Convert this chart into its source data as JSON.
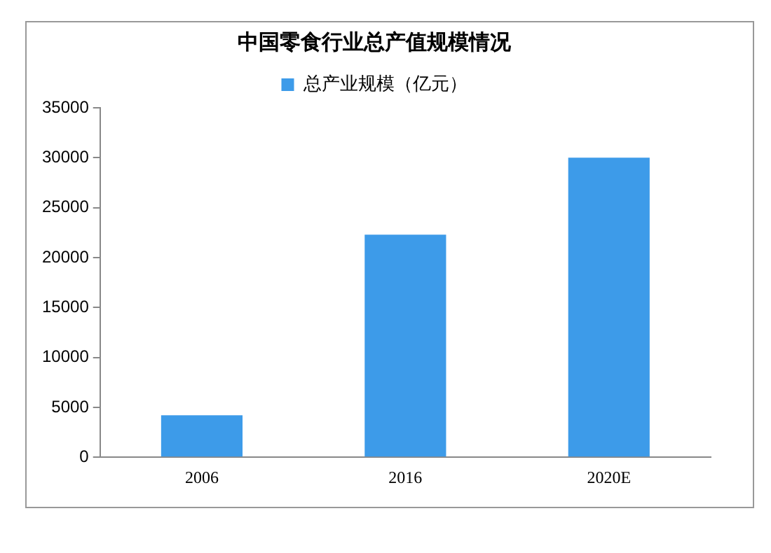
{
  "chart_data": {
    "type": "bar",
    "title": "中国零食行业总产值规模情况",
    "categories": [
      "2006",
      "2016",
      "2020E"
    ],
    "series": [
      {
        "name": "总产业规模（亿元）",
        "color": "#3d9be9",
        "values": [
          4200,
          22300,
          30000
        ]
      }
    ],
    "ylim": [
      0,
      35000
    ],
    "yticks": [
      0,
      5000,
      10000,
      15000,
      20000,
      25000,
      30000,
      35000
    ],
    "grid": false,
    "legend": "top"
  }
}
